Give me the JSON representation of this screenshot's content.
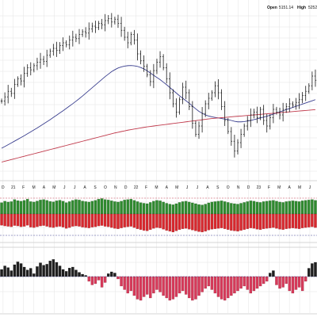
{
  "header": {
    "open_label": "Open",
    "open_value": "5151.14",
    "high_label": "High",
    "high_value": "5252"
  },
  "colors": {
    "price_bar": "#1a1a1a",
    "ma_short": "#3a3f8f",
    "ma_long": "#c0394b",
    "breadth_up": "#2f8a2f",
    "breadth_down": "#d7282e",
    "osc_up": "#1f1f1f",
    "osc_down": "#d63a5a",
    "ref_line_up": "#c0394b",
    "ref_line_down": "#3a3f8f",
    "grid": "#e3e3e3"
  },
  "chart_data": [
    {
      "type": "ohlc",
      "series": [
        {
          "values": [
            4140,
            4170,
            4210,
            4195,
            4260,
            4300,
            4285,
            4340,
            4380,
            4365,
            4395,
            4420,
            4440,
            4425,
            4470,
            4500,
            4520,
            4505,
            4540,
            4560,
            4545,
            4580,
            4600,
            4590,
            4620,
            4640,
            4630,
            4660,
            4680,
            4670,
            4700,
            4690,
            4720,
            4735,
            4710,
            4730,
            4700,
            4650,
            4600,
            4560,
            4620,
            4580,
            4480,
            4430,
            4390,
            4330,
            4280,
            4360,
            4420,
            4460,
            4380,
            4300,
            4200,
            4120,
            4060,
            4150,
            4240,
            4200,
            4100,
            3980,
            3900,
            3960,
            4050,
            4120,
            4160,
            4200,
            4250,
            4200,
            4100,
            4000,
            3920,
            3850,
            3780,
            3840,
            3900,
            3960,
            4000,
            4040,
            4060,
            4020,
            4080,
            4000,
            3960,
            4020,
            4080,
            4060,
            4040,
            4080,
            4100,
            4120,
            4110,
            4130,
            4150,
            4180,
            4210,
            4250,
            4320,
            4290
          ]
        },
        {
          "values": [
            3800,
            3812,
            3825,
            3838,
            3851,
            3864,
            3877,
            3890,
            3904,
            3918,
            3932,
            3946,
            3961,
            3976,
            3991,
            4006,
            4022,
            4038,
            4054,
            4070,
            4087,
            4104,
            4121,
            4139,
            4157,
            4176,
            4196,
            4216,
            4236,
            4256,
            4276,
            4296,
            4316,
            4334,
            4352,
            4366,
            4378,
            4386,
            4392,
            4395,
            4396,
            4394,
            4390,
            4382,
            4372,
            4358,
            4342,
            4326,
            4310,
            4294,
            4276,
            4258,
            4238,
            4218,
            4198,
            4178,
            4160,
            4142,
            4124,
            4104,
            4084,
            4066,
            4052,
            4040,
            4032,
            4026,
            4022,
            4018,
            4014,
            4010,
            4006,
            4000,
            3994,
            3990,
            3990,
            3992,
            3996,
            4000,
            4006,
            4012,
            4018,
            4024,
            4030,
            4038,
            4046,
            4054,
            4062,
            4070,
            4078,
            4086,
            4094,
            4102,
            4110,
            4118,
            4126,
            4134,
            4142,
            4150
          ]
        },
        {
          "values": [
            3700,
            3706,
            3712,
            3718,
            3724,
            3730,
            3736,
            3742,
            3748,
            3754,
            3760,
            3766,
            3772,
            3778,
            3784,
            3790,
            3796,
            3802,
            3808,
            3814,
            3820,
            3826,
            3832,
            3838,
            3844,
            3850,
            3856,
            3862,
            3868,
            3874,
            3880,
            3886,
            3892,
            3898,
            3904,
            3910,
            3915,
            3920,
            3925,
            3930,
            3934,
            3938,
            3942,
            3946,
            3950,
            3954,
            3957,
            3960,
            3963,
            3966,
            3969,
            3972,
            3975,
            3978,
            3981,
            3984,
            3987,
            3990,
            3993,
            3996,
            3999,
            4002,
            4005,
            4008,
            4011,
            4014,
            4016,
            4018,
            4020,
            4022,
            4024,
            4026,
            4028,
            4030,
            4032,
            4034,
            4036,
            4038,
            4040,
            4042,
            4044,
            4046,
            4048,
            4050,
            4052,
            4054,
            4056,
            4058,
            4060,
            4062,
            4064,
            4066,
            4068,
            4070,
            4072,
            4074,
            4076,
            4078
          ]
        }
      ],
      "ylim": [
        3600,
        4800
      ],
      "grid": true
    },
    {
      "type": "bar",
      "series": [
        {
          "values": [
            0.55,
            0.62,
            0.58,
            0.6,
            0.7,
            0.65,
            0.62,
            0.66,
            0.72,
            0.6,
            0.58,
            0.63,
            0.68,
            0.7,
            0.66,
            0.61,
            0.59,
            0.64,
            0.67,
            0.62,
            0.55,
            0.6,
            0.66,
            0.7,
            0.68,
            0.63,
            0.6,
            0.58,
            0.62,
            0.66,
            0.72,
            0.75,
            0.7,
            0.68,
            0.64,
            0.6,
            0.58,
            0.62,
            0.68,
            0.7,
            0.72,
            0.66,
            0.6,
            0.55,
            0.52,
            0.5,
            0.56,
            0.62,
            0.66,
            0.64,
            0.58,
            0.52,
            0.48,
            0.45,
            0.5,
            0.56,
            0.6,
            0.62,
            0.58,
            0.54,
            0.5,
            0.46,
            0.44,
            0.48,
            0.54,
            0.58,
            0.6,
            0.62,
            0.64,
            0.6,
            0.56,
            0.52,
            0.5,
            0.48,
            0.52,
            0.56,
            0.6,
            0.64,
            0.62,
            0.58,
            0.56,
            0.6,
            0.62,
            0.64,
            0.66,
            0.62,
            0.58,
            0.56,
            0.6,
            0.62,
            0.64,
            0.62,
            0.6,
            0.64,
            0.66,
            0.68,
            0.7,
            0.66
          ]
        },
        {
          "values": [
            0.55,
            0.58,
            0.6,
            0.62,
            0.56,
            0.58,
            0.62,
            0.6,
            0.55,
            0.64,
            0.66,
            0.62,
            0.58,
            0.56,
            0.6,
            0.64,
            0.66,
            0.62,
            0.6,
            0.64,
            0.7,
            0.66,
            0.6,
            0.58,
            0.6,
            0.64,
            0.66,
            0.68,
            0.64,
            0.62,
            0.58,
            0.56,
            0.6,
            0.62,
            0.66,
            0.7,
            0.72,
            0.68,
            0.64,
            0.62,
            0.6,
            0.66,
            0.72,
            0.76,
            0.8,
            0.82,
            0.76,
            0.7,
            0.66,
            0.68,
            0.74,
            0.8,
            0.84,
            0.88,
            0.82,
            0.76,
            0.72,
            0.7,
            0.74,
            0.78,
            0.82,
            0.86,
            0.88,
            0.84,
            0.78,
            0.74,
            0.72,
            0.7,
            0.68,
            0.72,
            0.76,
            0.8,
            0.82,
            0.84,
            0.8,
            0.76,
            0.72,
            0.68,
            0.7,
            0.74,
            0.76,
            0.72,
            0.7,
            0.68,
            0.66,
            0.7,
            0.74,
            0.76,
            0.72,
            0.7,
            0.68,
            0.7,
            0.72,
            0.68,
            0.66,
            0.64,
            0.62,
            0.66
          ]
        }
      ],
      "ylim": [
        -1,
        1
      ],
      "grid": true
    },
    {
      "type": "bar",
      "series": [
        {
          "values": [
            0.3,
            0.45,
            0.38,
            0.25,
            0.5,
            0.62,
            0.55,
            0.4,
            0.28,
            0.35,
            0.12,
            0.42,
            0.58,
            0.48,
            0.52,
            0.66,
            0.72,
            0.6,
            0.45,
            0.3,
            0.22,
            0.36,
            0.4,
            0.28,
            0.18,
            0.1,
            0.05,
            -0.2,
            -0.35,
            -0.3,
            -0.15,
            -0.45,
            -0.25,
            0.12,
            0.2,
            0.15,
            -0.1,
            -0.4,
            -0.55,
            -0.7,
            -0.6,
            -0.8,
            -0.95,
            -1.0,
            -0.85,
            -0.75,
            -0.9,
            -0.7,
            -0.55,
            -0.65,
            -0.8,
            -0.9,
            -1.0,
            -0.95,
            -0.85,
            -0.7,
            -0.6,
            -0.75,
            -0.9,
            -1.0,
            -0.95,
            -0.8,
            -0.65,
            -0.5,
            -0.4,
            -0.55,
            -0.7,
            -0.85,
            -0.95,
            -1.0,
            -0.9,
            -0.8,
            -0.7,
            -0.6,
            -0.5,
            -0.4,
            -0.55,
            -0.7,
            -0.6,
            -0.5,
            -0.4,
            -0.3,
            -0.2,
            0.15,
            0.25,
            -0.35,
            -0.5,
            -0.45,
            -0.3,
            -0.6,
            -0.7,
            -0.55,
            -0.45,
            -0.6,
            -0.2,
            0.35,
            0.55,
            0.6
          ]
        }
      ],
      "ylim": [
        -1,
        1
      ],
      "grid": true
    }
  ],
  "x_axis": {
    "ticks": [
      "D",
      "21",
      "F",
      "M",
      "A",
      "M",
      "J",
      "J",
      "A",
      "S",
      "O",
      "N",
      "D",
      "22",
      "F",
      "M",
      "A",
      "M",
      "J",
      "J",
      "A",
      "S",
      "O",
      "N",
      "D",
      "23",
      "F",
      "M",
      "A",
      "M",
      "J"
    ]
  }
}
